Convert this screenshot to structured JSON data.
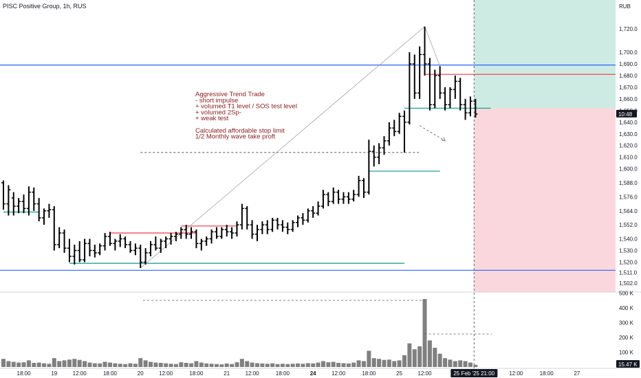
{
  "header": {
    "title": "PISC Positive Group, 1h, RUS",
    "currency": "RUB"
  },
  "annotation_lines": [
    "Aggressive Trend Trade",
    "- short impulse",
    "+ volumed T1 level / SOS test level",
    "+ volumed 2Sp-",
    "+ weak test",
    "",
    "Calculated affordable stop limit",
    "1/2 Monthly wave take proft"
  ],
  "price_badge": {
    "label": "10:48",
    "value": 1647
  },
  "volume_badge": {
    "label": "15.47 K"
  },
  "crosshair_time_label": "25 Feb '25   21:00",
  "colors": {
    "up_candle": "#000000",
    "blue_level": "#2962ff",
    "green_level": "#089981",
    "red_level": "#f23645",
    "target_zone": "#cdebe3",
    "stop_zone": "#fad7dc",
    "volume_bar": "#808080"
  },
  "chart_data": {
    "type": "candlestick",
    "price_ticks": [
      1720,
      1700,
      1690,
      1680,
      1670,
      1660,
      1650,
      1640,
      1630,
      1620,
      1610,
      1600,
      1588,
      1576,
      1564,
      1552,
      1540,
      1530,
      1520,
      1511,
      1502
    ],
    "price_tick_labels": [
      "1,720.0",
      "1,700.0",
      "1,690.0",
      "1,680.0",
      "1,670.0",
      "1,660.0",
      "1,650.0",
      "1,640.0",
      "1,630.0",
      "1,620.0",
      "1,610.0",
      "1,600.0",
      "1,588.0",
      "1,576.0",
      "1,564.0",
      "1,552.0",
      "1,540.0",
      "1,530.0",
      "1,520.0",
      "1,511.0",
      "1,502.0"
    ],
    "volume_ticks": [
      500,
      400,
      300,
      200,
      100
    ],
    "volume_tick_labels": [
      "500 K",
      "400 K",
      "300 K",
      "200 K",
      "100 K"
    ],
    "time_labels": [
      "18:00",
      "19",
      "12:00",
      "18:00",
      "20",
      "12:00",
      "18:00",
      "21",
      "12:00",
      "18:00",
      "24",
      "12:00",
      "18:00",
      "25",
      "12:00",
      "12:00",
      "18:00",
      "27"
    ],
    "time_label_bars": [
      4,
      10,
      15,
      21,
      27,
      32,
      38,
      44,
      49,
      55,
      61,
      66,
      72,
      78,
      83,
      101,
      107,
      113
    ],
    "bold_time_labels": [
      "24"
    ],
    "crosshair_bar": 93,
    "levels": [
      {
        "kind": "blue",
        "price": 1689
      },
      {
        "kind": "blue",
        "price": 1513
      },
      {
        "kind": "green",
        "price": 1519,
        "from_bar": 13,
        "to_bar": 79
      },
      {
        "kind": "green",
        "price": 1563,
        "from_bar": 0,
        "to_bar": 7
      },
      {
        "kind": "green",
        "price": 1598,
        "from_bar": 72,
        "to_bar": 86
      },
      {
        "kind": "green",
        "price": 1652,
        "from_bar": 79,
        "to_bar": 96
      },
      {
        "kind": "red",
        "price": 1545,
        "from_bar": 21,
        "to_bar": 38
      },
      {
        "kind": "red",
        "price": 1551,
        "from_bar": 35,
        "to_bar": 46
      },
      {
        "kind": "red",
        "price": 1681,
        "from_bar": 83,
        "to_bar": 122
      },
      {
        "kind": "dashed",
        "price": 1614,
        "from_bar": 27,
        "to_bar": 82
      }
    ],
    "trade_zones": {
      "entry": 1652,
      "take_profit": 1750,
      "stop": 1490,
      "from_bar": 93
    },
    "candles": [
      {
        "o": 1588,
        "h": 1590,
        "l": 1565,
        "c": 1570,
        "v": 55
      },
      {
        "o": 1570,
        "h": 1586,
        "l": 1560,
        "c": 1582,
        "v": 40
      },
      {
        "o": 1575,
        "h": 1580,
        "l": 1560,
        "c": 1568,
        "v": 35
      },
      {
        "o": 1568,
        "h": 1575,
        "l": 1562,
        "c": 1572,
        "v": 30
      },
      {
        "o": 1572,
        "h": 1578,
        "l": 1562,
        "c": 1566,
        "v": 32
      },
      {
        "o": 1566,
        "h": 1585,
        "l": 1560,
        "c": 1580,
        "v": 45
      },
      {
        "o": 1580,
        "h": 1584,
        "l": 1564,
        "c": 1570,
        "v": 28
      },
      {
        "o": 1570,
        "h": 1575,
        "l": 1555,
        "c": 1558,
        "v": 30
      },
      {
        "o": 1558,
        "h": 1566,
        "l": 1552,
        "c": 1564,
        "v": 25
      },
      {
        "o": 1564,
        "h": 1570,
        "l": 1558,
        "c": 1565,
        "v": 22
      },
      {
        "o": 1565,
        "h": 1568,
        "l": 1530,
        "c": 1535,
        "v": 60
      },
      {
        "o": 1535,
        "h": 1550,
        "l": 1532,
        "c": 1545,
        "v": 40
      },
      {
        "o": 1545,
        "h": 1548,
        "l": 1528,
        "c": 1532,
        "v": 45
      },
      {
        "o": 1532,
        "h": 1540,
        "l": 1520,
        "c": 1525,
        "v": 50
      },
      {
        "o": 1525,
        "h": 1535,
        "l": 1518,
        "c": 1530,
        "v": 55
      },
      {
        "o": 1530,
        "h": 1538,
        "l": 1520,
        "c": 1522,
        "v": 48
      },
      {
        "o": 1522,
        "h": 1540,
        "l": 1520,
        "c": 1536,
        "v": 40
      },
      {
        "o": 1536,
        "h": 1540,
        "l": 1525,
        "c": 1530,
        "v": 30
      },
      {
        "o": 1530,
        "h": 1535,
        "l": 1524,
        "c": 1528,
        "v": 25
      },
      {
        "o": 1528,
        "h": 1536,
        "l": 1526,
        "c": 1534,
        "v": 24
      },
      {
        "o": 1534,
        "h": 1545,
        "l": 1530,
        "c": 1542,
        "v": 35
      },
      {
        "o": 1542,
        "h": 1546,
        "l": 1534,
        "c": 1536,
        "v": 30
      },
      {
        "o": 1536,
        "h": 1540,
        "l": 1530,
        "c": 1538,
        "v": 25
      },
      {
        "o": 1538,
        "h": 1544,
        "l": 1533,
        "c": 1540,
        "v": 22
      },
      {
        "o": 1540,
        "h": 1542,
        "l": 1532,
        "c": 1535,
        "v": 20
      },
      {
        "o": 1535,
        "h": 1538,
        "l": 1528,
        "c": 1530,
        "v": 25
      },
      {
        "o": 1530,
        "h": 1536,
        "l": 1526,
        "c": 1532,
        "v": 22
      },
      {
        "o": 1532,
        "h": 1535,
        "l": 1515,
        "c": 1520,
        "v": 60
      },
      {
        "o": 1520,
        "h": 1532,
        "l": 1518,
        "c": 1528,
        "v": 45
      },
      {
        "o": 1528,
        "h": 1538,
        "l": 1525,
        "c": 1535,
        "v": 35
      },
      {
        "o": 1535,
        "h": 1542,
        "l": 1530,
        "c": 1532,
        "v": 30
      },
      {
        "o": 1532,
        "h": 1540,
        "l": 1528,
        "c": 1538,
        "v": 28
      },
      {
        "o": 1538,
        "h": 1542,
        "l": 1532,
        "c": 1540,
        "v": 25
      },
      {
        "o": 1540,
        "h": 1545,
        "l": 1535,
        "c": 1542,
        "v": 22
      },
      {
        "o": 1542,
        "h": 1546,
        "l": 1538,
        "c": 1544,
        "v": 20
      },
      {
        "o": 1544,
        "h": 1550,
        "l": 1540,
        "c": 1548,
        "v": 32
      },
      {
        "o": 1548,
        "h": 1552,
        "l": 1540,
        "c": 1544,
        "v": 28
      },
      {
        "o": 1544,
        "h": 1550,
        "l": 1540,
        "c": 1546,
        "v": 25
      },
      {
        "o": 1546,
        "h": 1548,
        "l": 1532,
        "c": 1536,
        "v": 40
      },
      {
        "o": 1536,
        "h": 1540,
        "l": 1530,
        "c": 1538,
        "v": 30
      },
      {
        "o": 1538,
        "h": 1542,
        "l": 1534,
        "c": 1540,
        "v": 24
      },
      {
        "o": 1540,
        "h": 1548,
        "l": 1536,
        "c": 1546,
        "v": 22
      },
      {
        "o": 1546,
        "h": 1550,
        "l": 1540,
        "c": 1542,
        "v": 20
      },
      {
        "o": 1542,
        "h": 1550,
        "l": 1540,
        "c": 1548,
        "v": 18
      },
      {
        "o": 1548,
        "h": 1552,
        "l": 1542,
        "c": 1546,
        "v": 24
      },
      {
        "o": 1546,
        "h": 1550,
        "l": 1540,
        "c": 1545,
        "v": 20
      },
      {
        "o": 1545,
        "h": 1555,
        "l": 1542,
        "c": 1552,
        "v": 32
      },
      {
        "o": 1552,
        "h": 1570,
        "l": 1548,
        "c": 1566,
        "v": 55
      },
      {
        "o": 1566,
        "h": 1568,
        "l": 1548,
        "c": 1552,
        "v": 40
      },
      {
        "o": 1552,
        "h": 1556,
        "l": 1540,
        "c": 1544,
        "v": 30
      },
      {
        "o": 1544,
        "h": 1552,
        "l": 1538,
        "c": 1548,
        "v": 26
      },
      {
        "o": 1548,
        "h": 1555,
        "l": 1544,
        "c": 1552,
        "v": 24
      },
      {
        "o": 1552,
        "h": 1556,
        "l": 1544,
        "c": 1548,
        "v": 22
      },
      {
        "o": 1548,
        "h": 1558,
        "l": 1546,
        "c": 1556,
        "v": 25
      },
      {
        "o": 1556,
        "h": 1558,
        "l": 1548,
        "c": 1552,
        "v": 20
      },
      {
        "o": 1552,
        "h": 1556,
        "l": 1546,
        "c": 1550,
        "v": 22
      },
      {
        "o": 1550,
        "h": 1554,
        "l": 1544,
        "c": 1548,
        "v": 20
      },
      {
        "o": 1548,
        "h": 1556,
        "l": 1546,
        "c": 1554,
        "v": 22
      },
      {
        "o": 1554,
        "h": 1560,
        "l": 1550,
        "c": 1558,
        "v": 24
      },
      {
        "o": 1558,
        "h": 1562,
        "l": 1552,
        "c": 1556,
        "v": 22
      },
      {
        "o": 1556,
        "h": 1566,
        "l": 1554,
        "c": 1564,
        "v": 26
      },
      {
        "o": 1564,
        "h": 1568,
        "l": 1558,
        "c": 1562,
        "v": 24
      },
      {
        "o": 1562,
        "h": 1572,
        "l": 1560,
        "c": 1568,
        "v": 30
      },
      {
        "o": 1568,
        "h": 1582,
        "l": 1566,
        "c": 1578,
        "v": 40
      },
      {
        "o": 1578,
        "h": 1580,
        "l": 1568,
        "c": 1572,
        "v": 32
      },
      {
        "o": 1572,
        "h": 1584,
        "l": 1570,
        "c": 1580,
        "v": 35
      },
      {
        "o": 1580,
        "h": 1582,
        "l": 1570,
        "c": 1574,
        "v": 28
      },
      {
        "o": 1574,
        "h": 1580,
        "l": 1570,
        "c": 1576,
        "v": 26
      },
      {
        "o": 1576,
        "h": 1580,
        "l": 1570,
        "c": 1574,
        "v": 24
      },
      {
        "o": 1574,
        "h": 1582,
        "l": 1572,
        "c": 1578,
        "v": 30
      },
      {
        "o": 1578,
        "h": 1594,
        "l": 1576,
        "c": 1590,
        "v": 45
      },
      {
        "o": 1590,
        "h": 1592,
        "l": 1575,
        "c": 1580,
        "v": 40
      },
      {
        "o": 1580,
        "h": 1625,
        "l": 1578,
        "c": 1615,
        "v": 110
      },
      {
        "o": 1615,
        "h": 1620,
        "l": 1602,
        "c": 1610,
        "v": 60
      },
      {
        "o": 1610,
        "h": 1622,
        "l": 1604,
        "c": 1618,
        "v": 55
      },
      {
        "o": 1618,
        "h": 1628,
        "l": 1612,
        "c": 1624,
        "v": 48
      },
      {
        "o": 1624,
        "h": 1640,
        "l": 1620,
        "c": 1635,
        "v": 50
      },
      {
        "o": 1635,
        "h": 1642,
        "l": 1628,
        "c": 1632,
        "v": 40
      },
      {
        "o": 1632,
        "h": 1648,
        "l": 1630,
        "c": 1645,
        "v": 45
      },
      {
        "o": 1645,
        "h": 1650,
        "l": 1614,
        "c": 1640,
        "v": 80
      },
      {
        "o": 1640,
        "h": 1700,
        "l": 1638,
        "c": 1690,
        "v": 160
      },
      {
        "o": 1690,
        "h": 1698,
        "l": 1660,
        "c": 1665,
        "v": 120
      },
      {
        "o": 1665,
        "h": 1705,
        "l": 1660,
        "c": 1698,
        "v": 140
      },
      {
        "o": 1698,
        "h": 1722,
        "l": 1680,
        "c": 1690,
        "v": 460
      },
      {
        "o": 1690,
        "h": 1695,
        "l": 1650,
        "c": 1655,
        "v": 180
      },
      {
        "o": 1655,
        "h": 1685,
        "l": 1652,
        "c": 1680,
        "v": 130
      },
      {
        "o": 1680,
        "h": 1688,
        "l": 1660,
        "c": 1665,
        "v": 90
      },
      {
        "o": 1665,
        "h": 1670,
        "l": 1650,
        "c": 1655,
        "v": 60
      },
      {
        "o": 1655,
        "h": 1670,
        "l": 1652,
        "c": 1668,
        "v": 50
      },
      {
        "o": 1668,
        "h": 1680,
        "l": 1660,
        "c": 1675,
        "v": 40
      },
      {
        "o": 1675,
        "h": 1678,
        "l": 1650,
        "c": 1655,
        "v": 45
      },
      {
        "o": 1655,
        "h": 1660,
        "l": 1642,
        "c": 1648,
        "v": 40
      },
      {
        "o": 1648,
        "h": 1662,
        "l": 1645,
        "c": 1658,
        "v": 30
      },
      {
        "o": 1658,
        "h": 1660,
        "l": 1644,
        "c": 1647,
        "v": 15
      }
    ]
  }
}
